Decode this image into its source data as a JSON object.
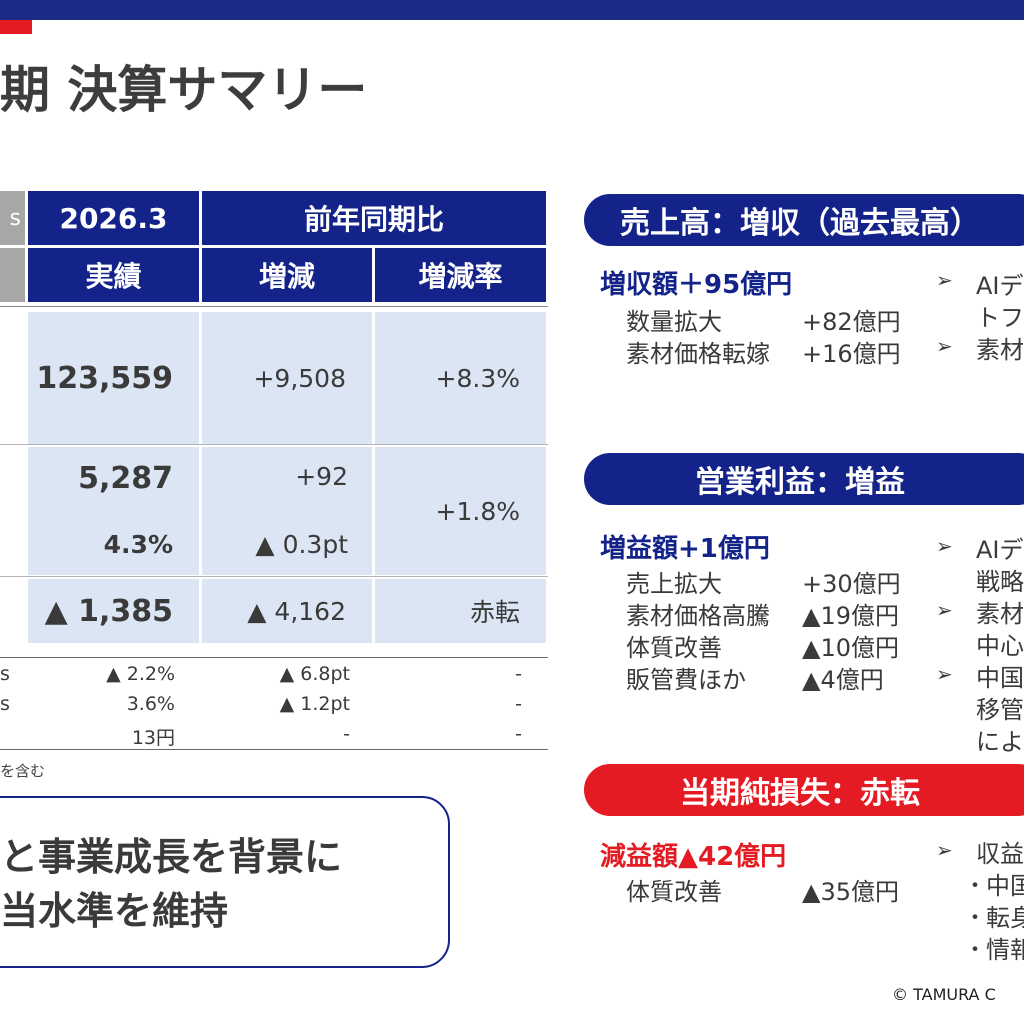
{
  "header": {
    "title": "期 決算サマリー"
  },
  "table": {
    "corner_top": "s",
    "col_period": "2026.3",
    "col_yoy": "前年同期比",
    "col_actual": "実績",
    "col_change": "増減",
    "col_rate": "増減率",
    "rows": {
      "sales": {
        "actual": "123,559",
        "change": "+9,508",
        "rate": "+8.3%"
      },
      "op": {
        "actual": "5,287",
        "change": "+92",
        "rate": "+1.8%"
      },
      "op_margin": {
        "actual": "4.3%",
        "change": "▲ 0.3pt"
      },
      "net": {
        "actual": "▲ 1,385",
        "change": "▲ 4,162",
        "rate": "赤転"
      }
    },
    "small_rows": [
      {
        "left": "s",
        "actual": "▲ 2.2%",
        "change": "▲ 6.8pt",
        "rate": "-"
      },
      {
        "left": "s",
        "actual": "3.6%",
        "change": "▲ 1.2pt",
        "rate": "-"
      },
      {
        "left": "",
        "actual": "13円",
        "change": "-",
        "rate": "-"
      }
    ],
    "note": "を含む"
  },
  "callout": {
    "line1": "と事業成長を背景に",
    "line2": "当水準を維持"
  },
  "sales_panel": {
    "pill": "売上高：増収（過去最高）",
    "head": "増収額＋95億円",
    "items": [
      {
        "label": "数量拡大",
        "value": "+82億円"
      },
      {
        "label": "素材価格転嫁",
        "value": "+16億円"
      }
    ],
    "right": [
      "AIデ",
      "トフ",
      "素材"
    ]
  },
  "op_panel": {
    "pill": "営業利益：増益",
    "head": "増益額+1億円",
    "items": [
      {
        "label": "売上拡大",
        "value": "+30億円"
      },
      {
        "label": "素材価格高騰",
        "value": "▲19億円"
      },
      {
        "label": "体質改善",
        "value": "▲10億円"
      },
      {
        "label": "販管費ほか",
        "value": "▲4億円"
      }
    ],
    "right": [
      "AIデ",
      "戦略",
      "素材",
      "中心",
      "中国",
      "移管",
      "によ"
    ]
  },
  "net_panel": {
    "pill": "当期純損失：赤転",
    "head": "減益額▲42億円",
    "items": [
      {
        "label": "体質改善",
        "value": "▲35億円"
      }
    ],
    "right": [
      "収益",
      "中国",
      "転身",
      "情報"
    ]
  },
  "footer": {
    "copyright": "© TAMURA C"
  },
  "colors": {
    "navy": "#14238a",
    "red": "#e41b23",
    "light_blue": "#dbe5f4",
    "grey": "#a7a7a7"
  }
}
